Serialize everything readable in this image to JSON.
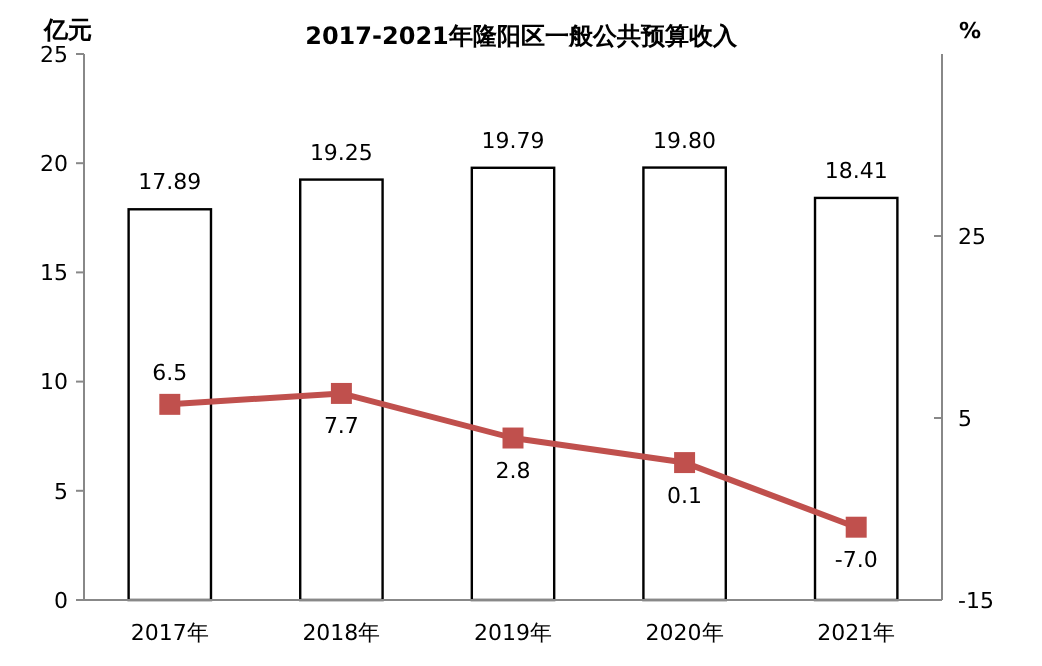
{
  "chart_data": {
    "type": "bar",
    "title": "2017-2021年隆阳区一般公共预算收入",
    "ylabel": "亿元",
    "y2label": "%",
    "categories": [
      "2017年",
      "2018年",
      "2019年",
      "2020年",
      "2021年"
    ],
    "series": [
      {
        "color": "#ffffff",
        "values": [
          17.89,
          19.25,
          19.79,
          19.8,
          18.41
        ],
        "value_labels": [
          "17.89",
          "19.25",
          "19.79",
          "19.80",
          "18.41"
        ]
      },
      {
        "type": "line",
        "axis": "y2",
        "color": "#c0504d",
        "marker": "square",
        "values": [
          6.5,
          7.7,
          2.8,
          0.1,
          -7.0
        ],
        "value_labels": [
          "6.5",
          "7.7",
          "2.8",
          "0.1",
          "-7.0"
        ]
      }
    ],
    "ylim": [
      0,
      25
    ],
    "yticks": [
      0,
      5,
      10,
      15,
      20,
      25
    ],
    "y2lim": [
      -15,
      45
    ],
    "y2ticks": [
      -15,
      5,
      25
    ],
    "grid": false
  }
}
